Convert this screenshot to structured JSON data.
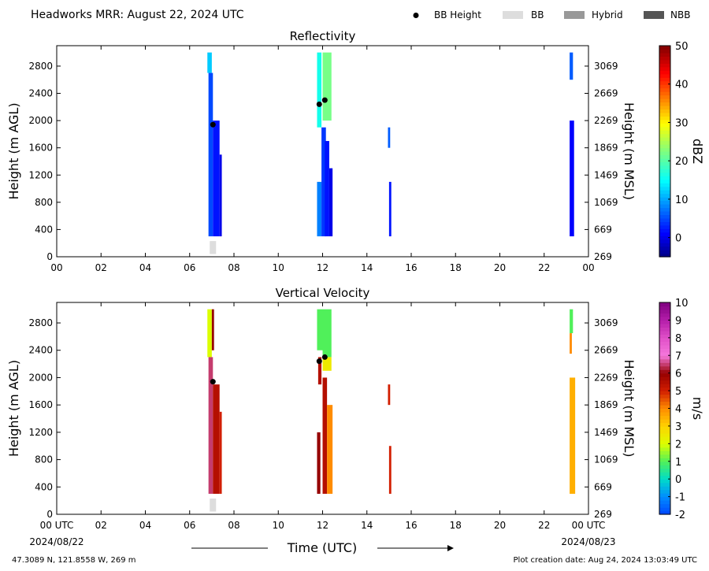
{
  "header": {
    "title": "Headworks MRR:  August 22, 2024 UTC"
  },
  "legend": {
    "items": [
      {
        "label": "BB Height",
        "kind": "dot",
        "color": "#000000"
      },
      {
        "label": "BB",
        "kind": "swatch",
        "color": "#dddddd"
      },
      {
        "label": "Hybrid",
        "kind": "swatch",
        "color": "#999999"
      },
      {
        "label": "NBB",
        "kind": "swatch",
        "color": "#555555"
      }
    ]
  },
  "footer": {
    "location": "47.3089 N, 121.8558 W, 269 m",
    "creation": "Plot creation date: Aug 24, 2024 13:03:49 UTC",
    "start_date": "2024/08/22",
    "end_date": "2024/08/23"
  },
  "chart_data": [
    {
      "type": "heatmap",
      "title": "Reflectivity",
      "xlabel": "",
      "ylabel": "Height (m AGL)",
      "ylabel_right": "Height (m MSL)",
      "xlim": [
        0,
        24
      ],
      "ylim": [
        0,
        3100
      ],
      "x_tick_labels": [
        "00",
        "02",
        "04",
        "06",
        "08",
        "10",
        "12",
        "14",
        "16",
        "18",
        "20",
        "22",
        "00"
      ],
      "y_ticks": [
        0,
        400,
        800,
        1200,
        1600,
        2000,
        2400,
        2800
      ],
      "y_right_ticks": [
        269,
        669,
        1069,
        1469,
        1869,
        2269,
        2669,
        3069
      ],
      "colorbar": {
        "label": "dBZ",
        "range": [
          -5,
          50
        ],
        "ticks": [
          0,
          10,
          20,
          30,
          40,
          50
        ],
        "colormap": "jet"
      },
      "bb_height": [
        {
          "x": 7.05,
          "y": 1940
        },
        {
          "x": 11.85,
          "y": 2240
        },
        {
          "x": 12.1,
          "y": 2300
        }
      ],
      "bb_class": [
        {
          "x": 7.05,
          "class": "BB"
        }
      ],
      "echo_columns": [
        {
          "x0": 6.8,
          "x1": 7.0,
          "y0": 2700,
          "y1": 3000,
          "value": 12
        },
        {
          "x0": 6.85,
          "x1": 7.05,
          "y0": 300,
          "y1": 2700,
          "value": 5
        },
        {
          "x0": 7.05,
          "x1": 7.35,
          "y0": 300,
          "y1": 2000,
          "value": 2
        },
        {
          "x0": 7.35,
          "x1": 7.45,
          "y0": 300,
          "y1": 1500,
          "value": 0
        },
        {
          "x0": 11.75,
          "x1": 11.95,
          "y0": 300,
          "y1": 1100,
          "value": 8
        },
        {
          "x0": 11.75,
          "x1": 11.95,
          "y0": 1900,
          "y1": 3000,
          "value": 16
        },
        {
          "x0": 11.95,
          "x1": 12.15,
          "y0": 300,
          "y1": 1900,
          "value": 4
        },
        {
          "x0": 12.0,
          "x1": 12.4,
          "y0": 2000,
          "y1": 3000,
          "value": 22
        },
        {
          "x0": 12.1,
          "x1": 12.3,
          "y0": 300,
          "y1": 1700,
          "value": 2
        },
        {
          "x0": 12.3,
          "x1": 12.45,
          "y0": 300,
          "y1": 1300,
          "value": 0
        },
        {
          "x0": 15.0,
          "x1": 15.1,
          "y0": 300,
          "y1": 1100,
          "value": 2
        },
        {
          "x0": 14.95,
          "x1": 15.05,
          "y0": 1600,
          "y1": 1900,
          "value": 6
        },
        {
          "x0": 23.15,
          "x1": 23.3,
          "y0": 2600,
          "y1": 3000,
          "value": 6
        },
        {
          "x0": 23.15,
          "x1": 23.35,
          "y0": 300,
          "y1": 2000,
          "value": 1
        }
      ]
    },
    {
      "type": "heatmap",
      "title": "Vertical Velocity",
      "xlabel": "Time (UTC)",
      "ylabel": "Height (m AGL)",
      "ylabel_right": "Height (m MSL)",
      "xlim": [
        0,
        24
      ],
      "ylim": [
        0,
        3100
      ],
      "x_tick_labels": [
        "00 UTC",
        "02",
        "04",
        "06",
        "08",
        "10",
        "12",
        "14",
        "16",
        "18",
        "20",
        "22",
        "00 UTC"
      ],
      "y_ticks": [
        0,
        400,
        800,
        1200,
        1600,
        2000,
        2400,
        2800
      ],
      "y_right_ticks": [
        269,
        669,
        1069,
        1469,
        1869,
        2269,
        2669,
        3069
      ],
      "colorbar": {
        "label": "m/s",
        "range": [
          -2,
          10
        ],
        "ticks": [
          -2,
          -1,
          0,
          1,
          2,
          3,
          4,
          5,
          6,
          7,
          8,
          9,
          10
        ],
        "colormap": "velocity"
      },
      "bb_height": [
        {
          "x": 7.05,
          "y": 1940
        },
        {
          "x": 11.85,
          "y": 2240
        },
        {
          "x": 12.1,
          "y": 2300
        }
      ],
      "bb_class": [
        {
          "x": 7.05,
          "class": "BB"
        }
      ],
      "echo_columns": [
        {
          "x0": 6.8,
          "x1": 7.0,
          "y0": 2300,
          "y1": 3000,
          "value": 2
        },
        {
          "x0": 6.85,
          "x1": 7.05,
          "y0": 300,
          "y1": 2300,
          "value": 6.5
        },
        {
          "x0": 7.0,
          "x1": 7.1,
          "y0": 2400,
          "y1": 3000,
          "value": 6
        },
        {
          "x0": 7.05,
          "x1": 7.35,
          "y0": 300,
          "y1": 1900,
          "value": 5.5
        },
        {
          "x0": 7.35,
          "x1": 7.45,
          "y0": 300,
          "y1": 1500,
          "value": 5
        },
        {
          "x0": 11.75,
          "x1": 11.9,
          "y0": 300,
          "y1": 1200,
          "value": 6
        },
        {
          "x0": 11.8,
          "x1": 11.95,
          "y0": 1900,
          "y1": 2300,
          "value": 5.5
        },
        {
          "x0": 11.75,
          "x1": 12.0,
          "y0": 2400,
          "y1": 3000,
          "value": 1
        },
        {
          "x0": 12.0,
          "x1": 12.4,
          "y0": 2300,
          "y1": 3000,
          "value": 1
        },
        {
          "x0": 12.0,
          "x1": 12.4,
          "y0": 2100,
          "y1": 2300,
          "value": 2.5
        },
        {
          "x0": 12.0,
          "x1": 12.2,
          "y0": 300,
          "y1": 2000,
          "value": 5.5
        },
        {
          "x0": 12.2,
          "x1": 12.45,
          "y0": 300,
          "y1": 1600,
          "value": 4
        },
        {
          "x0": 15.0,
          "x1": 15.1,
          "y0": 300,
          "y1": 1000,
          "value": 5
        },
        {
          "x0": 14.95,
          "x1": 15.05,
          "y0": 1600,
          "y1": 1900,
          "value": 5
        },
        {
          "x0": 23.15,
          "x1": 23.3,
          "y0": 2650,
          "y1": 3000,
          "value": 1
        },
        {
          "x0": 23.15,
          "x1": 23.25,
          "y0": 2350,
          "y1": 2650,
          "value": 4
        },
        {
          "x0": 23.15,
          "x1": 23.4,
          "y0": 300,
          "y1": 2000,
          "value": 3.5
        }
      ]
    }
  ]
}
